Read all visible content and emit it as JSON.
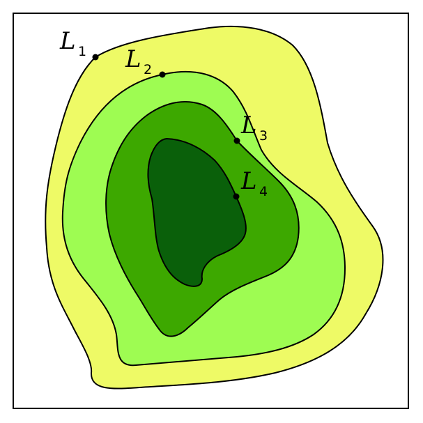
{
  "diagram": {
    "background": "#ffffff",
    "frame_color": "#000000",
    "outline_color": "#000000"
  },
  "level_sets": [
    {
      "name": "L",
      "subscript": "1",
      "fill": "#eefa66"
    },
    {
      "name": "L",
      "subscript": "2",
      "fill": "#9efc52"
    },
    {
      "name": "L",
      "subscript": "3",
      "fill": "#3da800"
    },
    {
      "name": "L",
      "subscript": "4",
      "fill": "#0a600a"
    }
  ]
}
